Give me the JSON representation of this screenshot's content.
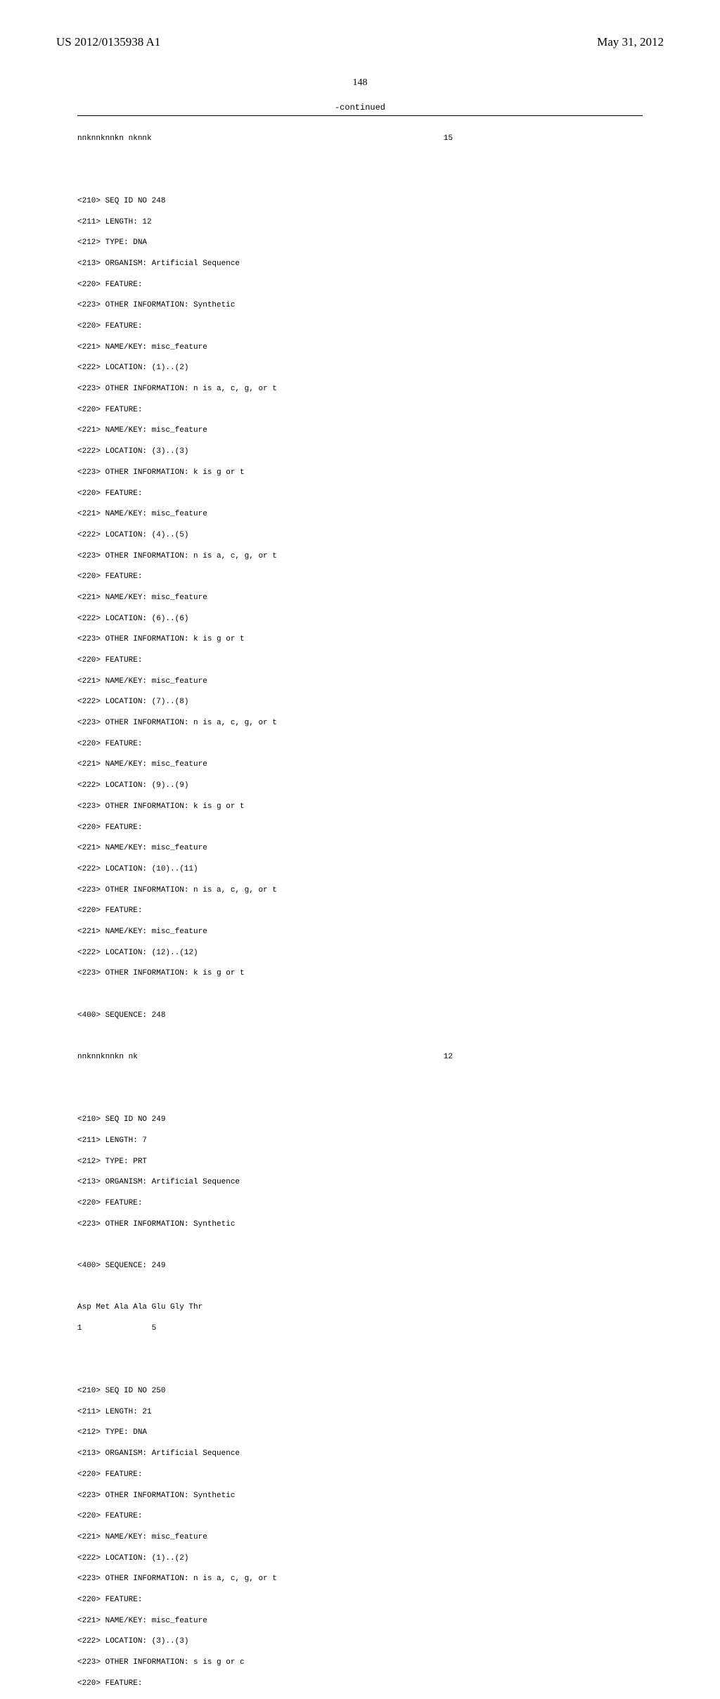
{
  "header": {
    "pub_number": "US 2012/0135938 A1",
    "pub_date": "May 31, 2012"
  },
  "page_number": "148",
  "continued_label": "-continued",
  "seq247": {
    "sequence": "nnknnknnkn nknnk",
    "length_value": "15"
  },
  "seq248": {
    "l210": "<210> SEQ ID NO 248",
    "l211": "<211> LENGTH: 12",
    "l212": "<212> TYPE: DNA",
    "l213": "<213> ORGANISM: Artificial Sequence",
    "f0a": "<220> FEATURE:",
    "f0b": "<223> OTHER INFORMATION: Synthetic",
    "f1a": "<220> FEATURE:",
    "f1b": "<221> NAME/KEY: misc_feature",
    "f1c": "<222> LOCATION: (1)..(2)",
    "f1d": "<223> OTHER INFORMATION: n is a, c, g, or t",
    "f2a": "<220> FEATURE:",
    "f2b": "<221> NAME/KEY: misc_feature",
    "f2c": "<222> LOCATION: (3)..(3)",
    "f2d": "<223> OTHER INFORMATION: k is g or t",
    "f3a": "<220> FEATURE:",
    "f3b": "<221> NAME/KEY: misc_feature",
    "f3c": "<222> LOCATION: (4)..(5)",
    "f3d": "<223> OTHER INFORMATION: n is a, c, g, or t",
    "f4a": "<220> FEATURE:",
    "f4b": "<221> NAME/KEY: misc_feature",
    "f4c": "<222> LOCATION: (6)..(6)",
    "f4d": "<223> OTHER INFORMATION: k is g or t",
    "f5a": "<220> FEATURE:",
    "f5b": "<221> NAME/KEY: misc_feature",
    "f5c": "<222> LOCATION: (7)..(8)",
    "f5d": "<223> OTHER INFORMATION: n is a, c, g, or t",
    "f6a": "<220> FEATURE:",
    "f6b": "<221> NAME/KEY: misc_feature",
    "f6c": "<222> LOCATION: (9)..(9)",
    "f6d": "<223> OTHER INFORMATION: k is g or t",
    "f7a": "<220> FEATURE:",
    "f7b": "<221> NAME/KEY: misc_feature",
    "f7c": "<222> LOCATION: (10)..(11)",
    "f7d": "<223> OTHER INFORMATION: n is a, c, g, or t",
    "f8a": "<220> FEATURE:",
    "f8b": "<221> NAME/KEY: misc_feature",
    "f8c": "<222> LOCATION: (12)..(12)",
    "f8d": "<223> OTHER INFORMATION: k is g or t",
    "l400": "<400> SEQUENCE: 248",
    "sequence": "nnknnknnkn nk",
    "length_value": "12"
  },
  "seq249": {
    "l210": "<210> SEQ ID NO 249",
    "l211": "<211> LENGTH: 7",
    "l212": "<212> TYPE: PRT",
    "l213": "<213> ORGANISM: Artificial Sequence",
    "f0a": "<220> FEATURE:",
    "f0b": "<223> OTHER INFORMATION: Synthetic",
    "l400": "<400> SEQUENCE: 249",
    "sequence": "Asp Met Ala Ala Glu Gly Thr",
    "numbers": "1               5"
  },
  "seq250": {
    "l210": "<210> SEQ ID NO 250",
    "l211": "<211> LENGTH: 21",
    "l212": "<212> TYPE: DNA",
    "l213": "<213> ORGANISM: Artificial Sequence",
    "f0a": "<220> FEATURE:",
    "f0b": "<223> OTHER INFORMATION: Synthetic",
    "f1a": "<220> FEATURE:",
    "f1b": "<221> NAME/KEY: misc_feature",
    "f1c": "<222> LOCATION: (1)..(2)",
    "f1d": "<223> OTHER INFORMATION: n is a, c, g, or t",
    "f2a": "<220> FEATURE:",
    "f2b": "<221> NAME/KEY: misc_feature",
    "f2c": "<222> LOCATION: (3)..(3)",
    "f2d": "<223> OTHER INFORMATION: s is g or c",
    "f3a": "<220> FEATURE:"
  }
}
